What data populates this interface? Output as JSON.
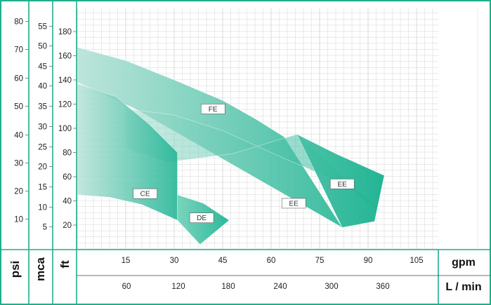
{
  "chart_data": {
    "type": "area",
    "colors": {
      "frame": "#1fae8c",
      "fill_light": "#b8e3d8",
      "fill_dark": "#12b08d",
      "grid": "#d4d4d4",
      "text": "#222222"
    },
    "axes": {
      "psi": {
        "label": "psi",
        "ticks": [
          "10",
          "20",
          "30",
          "40",
          "50",
          "60",
          "70",
          "80"
        ]
      },
      "mca": {
        "label": "mca",
        "ticks": [
          "5",
          "10",
          "15",
          "20",
          "25",
          "30",
          "35",
          "40",
          "45",
          "50",
          "55"
        ]
      },
      "ft": {
        "label": "ft",
        "ticks": [
          "20",
          "40",
          "60",
          "80",
          "100",
          "120",
          "140",
          "160",
          "180"
        ],
        "range": [
          0,
          200
        ]
      },
      "gpm": {
        "label": "gpm",
        "ticks": [
          "15",
          "30",
          "45",
          "60",
          "75",
          "90",
          "105"
        ],
        "range": [
          0,
          112
        ]
      },
      "lmin": {
        "label": "L / min",
        "ticks": [
          "60",
          "120",
          "180",
          "240",
          "300",
          "360"
        ]
      }
    },
    "series": [
      {
        "name": "FE",
        "label_at": [
          42,
          116
        ],
        "points": [
          [
            0,
            167
          ],
          [
            15,
            156
          ],
          [
            30,
            140
          ],
          [
            45,
            123
          ],
          [
            55,
            108
          ],
          [
            64,
            93
          ],
          [
            82,
            18
          ],
          [
            18,
            116
          ],
          [
            0,
            138
          ]
        ]
      },
      {
        "name": "EE",
        "label_at": [
          67,
          38
        ],
        "points": [
          [
            15,
            116
          ],
          [
            30,
            111
          ],
          [
            45,
            98
          ],
          [
            65,
            74
          ],
          [
            80,
            57
          ],
          [
            94,
            31
          ],
          [
            68,
            95
          ],
          [
            48,
            79
          ],
          [
            28,
            72
          ],
          [
            15,
            84
          ]
        ]
      },
      {
        "name": "EE",
        "label_at": [
          82,
          54
        ],
        "points": [
          [
            68,
            95
          ],
          [
            80,
            79
          ],
          [
            95,
            61
          ],
          [
            92,
            23
          ],
          [
            82,
            18
          ],
          [
            68,
            95
          ]
        ]
      },
      {
        "name": "CE",
        "label_at": [
          21,
          46
        ],
        "points": [
          [
            0,
            137
          ],
          [
            12,
            126
          ],
          [
            22,
            104
          ],
          [
            31,
            80
          ],
          [
            31,
            24
          ],
          [
            20,
            37
          ],
          [
            10,
            43
          ],
          [
            0,
            45
          ]
        ]
      },
      {
        "name": "DE",
        "label_at": [
          38.5,
          26
        ],
        "points": [
          [
            31,
            45
          ],
          [
            39,
            38
          ],
          [
            47,
            24
          ],
          [
            38,
            4
          ],
          [
            31,
            24
          ]
        ]
      }
    ]
  }
}
